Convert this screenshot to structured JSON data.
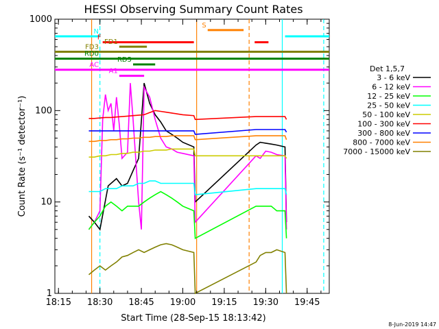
{
  "chart_data": {
    "type": "line",
    "title": "HESSI Observing Summary Count Rates",
    "xlabel": "Start Time (28-Sep-15 18:13:42)",
    "ylabel": "Count Rate (s⁻¹ detector⁻¹)",
    "yscale": "log",
    "ylim": [
      1,
      1000
    ],
    "xlim": [
      "18:13:42",
      "19:53:00"
    ],
    "x_ticks": [
      "18:15",
      "18:30",
      "18:45",
      "19:00",
      "19:15",
      "19:30",
      "19:45"
    ],
    "y_ticks": [
      "1",
      "10",
      "100",
      "1000"
    ],
    "legend_title": "Det 1,5,7",
    "legend_position": "right",
    "series": [
      {
        "name": "3 - 6 keV",
        "color": "#000000",
        "points": [
          [
            "18:26",
            7
          ],
          [
            "18:28",
            6
          ],
          [
            "18:30",
            5
          ],
          [
            "18:33",
            15
          ],
          [
            "18:36",
            18
          ],
          [
            "18:38",
            15
          ],
          [
            "18:40",
            16
          ],
          [
            "18:42",
            22
          ],
          [
            "18:44",
            30
          ],
          [
            "18:46",
            200
          ],
          [
            "18:48",
            120
          ],
          [
            "18:50",
            90
          ],
          [
            "18:52",
            75
          ],
          [
            "18:54",
            60
          ],
          [
            "18:56",
            55
          ],
          [
            "18:58",
            50
          ],
          [
            "19:00",
            45
          ],
          [
            "19:04",
            40
          ],
          [
            "19:04.5",
            10
          ],
          [
            "19:26.5",
            42
          ],
          [
            "19:28",
            45
          ],
          [
            "19:30",
            44
          ],
          [
            "19:32",
            43
          ],
          [
            "19:34",
            42
          ],
          [
            "19:37",
            40
          ],
          [
            "19:37.5",
            6
          ]
        ]
      },
      {
        "name": "6 - 12 keV",
        "color": "#ff00ff",
        "points": [
          [
            "18:26",
            5
          ],
          [
            "18:28",
            6
          ],
          [
            "18:30",
            8
          ],
          [
            "18:31",
            80
          ],
          [
            "18:32",
            150
          ],
          [
            "18:33",
            100
          ],
          [
            "18:34",
            120
          ],
          [
            "18:35",
            60
          ],
          [
            "18:36",
            140
          ],
          [
            "18:37",
            70
          ],
          [
            "18:38",
            30
          ],
          [
            "18:40",
            35
          ],
          [
            "18:41",
            200
          ],
          [
            "18:42",
            80
          ],
          [
            "18:44",
            10
          ],
          [
            "18:45",
            5
          ],
          [
            "18:46",
            180
          ],
          [
            "18:48",
            140
          ],
          [
            "18:50",
            80
          ],
          [
            "18:52",
            50
          ],
          [
            "18:54",
            40
          ],
          [
            "18:56",
            38
          ],
          [
            "18:58",
            35
          ],
          [
            "19:00",
            34
          ],
          [
            "19:04",
            32
          ],
          [
            "19:04.5",
            6
          ],
          [
            "19:26.5",
            32
          ],
          [
            "19:28",
            30
          ],
          [
            "19:30",
            36
          ],
          [
            "19:32",
            35
          ],
          [
            "19:34",
            33
          ],
          [
            "19:37",
            32
          ],
          [
            "19:37.5",
            5
          ]
        ]
      },
      {
        "name": "12 - 25 keV",
        "color": "#00ff00",
        "points": [
          [
            "18:26",
            5
          ],
          [
            "18:28",
            6
          ],
          [
            "18:30",
            7
          ],
          [
            "18:32",
            9
          ],
          [
            "18:34",
            10
          ],
          [
            "18:36",
            9
          ],
          [
            "18:38",
            8
          ],
          [
            "18:40",
            9
          ],
          [
            "18:42",
            9
          ],
          [
            "18:44",
            9
          ],
          [
            "18:46",
            10
          ],
          [
            "18:48",
            11
          ],
          [
            "18:50",
            12
          ],
          [
            "18:52",
            13
          ],
          [
            "18:54",
            12
          ],
          [
            "18:56",
            11
          ],
          [
            "18:58",
            10
          ],
          [
            "19:00",
            9
          ],
          [
            "19:04",
            8
          ],
          [
            "19:04.5",
            4
          ],
          [
            "19:26.5",
            9
          ],
          [
            "19:28",
            9
          ],
          [
            "19:30",
            9
          ],
          [
            "19:32",
            9
          ],
          [
            "19:34",
            8
          ],
          [
            "19:37",
            8
          ],
          [
            "19:37.5",
            4
          ]
        ]
      },
      {
        "name": "25 - 50 keV",
        "color": "#00ffff",
        "points": [
          [
            "18:26",
            13
          ],
          [
            "18:28",
            13
          ],
          [
            "18:30",
            13
          ],
          [
            "18:32",
            14
          ],
          [
            "18:34",
            14
          ],
          [
            "18:36",
            14
          ],
          [
            "18:38",
            15
          ],
          [
            "18:40",
            15
          ],
          [
            "18:42",
            15
          ],
          [
            "18:44",
            16
          ],
          [
            "18:46",
            16
          ],
          [
            "18:48",
            17
          ],
          [
            "18:50",
            17
          ],
          [
            "18:52",
            16
          ],
          [
            "18:54",
            16
          ],
          [
            "18:56",
            16
          ],
          [
            "18:58",
            16
          ],
          [
            "19:00",
            16
          ],
          [
            "19:04",
            16
          ],
          [
            "19:04.5",
            12
          ],
          [
            "19:26.5",
            14
          ],
          [
            "19:28",
            14
          ],
          [
            "19:30",
            14
          ],
          [
            "19:32",
            14
          ],
          [
            "19:34",
            14
          ],
          [
            "19:37",
            14
          ],
          [
            "19:37.5",
            12
          ]
        ]
      },
      {
        "name": "50 - 100 keV",
        "color": "#cccc00",
        "points": [
          [
            "18:26",
            31
          ],
          [
            "18:28",
            31
          ],
          [
            "18:30",
            32
          ],
          [
            "18:32",
            32
          ],
          [
            "18:34",
            33
          ],
          [
            "18:36",
            33
          ],
          [
            "18:38",
            34
          ],
          [
            "18:40",
            34
          ],
          [
            "18:42",
            35
          ],
          [
            "18:44",
            35
          ],
          [
            "18:46",
            36
          ],
          [
            "18:48",
            36
          ],
          [
            "18:50",
            37
          ],
          [
            "18:52",
            37
          ],
          [
            "18:54",
            37
          ],
          [
            "18:56",
            38
          ],
          [
            "18:58",
            38
          ],
          [
            "19:00",
            38
          ],
          [
            "19:04",
            38
          ],
          [
            "19:04.5",
            32
          ],
          [
            "19:26.5",
            32
          ],
          [
            "19:28",
            32
          ],
          [
            "19:30",
            32
          ],
          [
            "19:32",
            32
          ],
          [
            "19:34",
            32
          ],
          [
            "19:37",
            32
          ],
          [
            "19:37.5",
            30
          ]
        ]
      },
      {
        "name": "100 - 300 keV",
        "color": "#ff0000",
        "points": [
          [
            "18:26",
            82
          ],
          [
            "18:28",
            82
          ],
          [
            "18:30",
            83
          ],
          [
            "18:32",
            84
          ],
          [
            "18:34",
            84
          ],
          [
            "18:36",
            85
          ],
          [
            "18:38",
            86
          ],
          [
            "18:40",
            87
          ],
          [
            "18:42",
            88
          ],
          [
            "18:44",
            89
          ],
          [
            "18:46",
            90
          ],
          [
            "18:48",
            95
          ],
          [
            "18:50",
            100
          ],
          [
            "18:52",
            98
          ],
          [
            "18:54",
            96
          ],
          [
            "18:56",
            94
          ],
          [
            "18:58",
            92
          ],
          [
            "19:00",
            90
          ],
          [
            "19:04",
            88
          ],
          [
            "19:04.5",
            80
          ],
          [
            "19:26.5",
            86
          ],
          [
            "19:28",
            86
          ],
          [
            "19:30",
            86
          ],
          [
            "19:32",
            86
          ],
          [
            "19:34",
            86
          ],
          [
            "19:37",
            86
          ],
          [
            "19:37.5",
            80
          ]
        ]
      },
      {
        "name": "300 - 800 keV",
        "color": "#0000ff",
        "points": [
          [
            "18:26",
            60
          ],
          [
            "18:28",
            60
          ],
          [
            "18:30",
            60
          ],
          [
            "18:32",
            60
          ],
          [
            "18:34",
            60
          ],
          [
            "18:36",
            60
          ],
          [
            "18:38",
            60
          ],
          [
            "18:40",
            60
          ],
          [
            "18:42",
            60
          ],
          [
            "18:44",
            60
          ],
          [
            "18:46",
            60
          ],
          [
            "18:48",
            60
          ],
          [
            "18:50",
            60
          ],
          [
            "18:52",
            60
          ],
          [
            "18:54",
            60
          ],
          [
            "18:56",
            60
          ],
          [
            "18:58",
            60
          ],
          [
            "19:00",
            60
          ],
          [
            "19:04",
            60
          ],
          [
            "19:04.5",
            55
          ],
          [
            "19:26.5",
            62
          ],
          [
            "19:28",
            62
          ],
          [
            "19:30",
            62
          ],
          [
            "19:32",
            62
          ],
          [
            "19:34",
            62
          ],
          [
            "19:37",
            62
          ],
          [
            "19:37.5",
            58
          ]
        ]
      },
      {
        "name": "800 - 7000 keV",
        "color": "#ff8000",
        "points": [
          [
            "18:26",
            46
          ],
          [
            "18:28",
            46
          ],
          [
            "18:30",
            47
          ],
          [
            "18:32",
            47
          ],
          [
            "18:34",
            48
          ],
          [
            "18:36",
            48
          ],
          [
            "18:38",
            49
          ],
          [
            "18:40",
            49
          ],
          [
            "18:42",
            50
          ],
          [
            "18:44",
            50
          ],
          [
            "18:46",
            51
          ],
          [
            "18:48",
            51
          ],
          [
            "18:50",
            52
          ],
          [
            "18:52",
            52
          ],
          [
            "18:54",
            52
          ],
          [
            "18:56",
            53
          ],
          [
            "18:58",
            53
          ],
          [
            "19:00",
            53
          ],
          [
            "19:04",
            53
          ],
          [
            "19:04.5",
            48
          ],
          [
            "19:26.5",
            53
          ],
          [
            "19:28",
            53
          ],
          [
            "19:30",
            53
          ],
          [
            "19:32",
            53
          ],
          [
            "19:34",
            53
          ],
          [
            "19:37",
            53
          ],
          [
            "19:37.5",
            48
          ]
        ]
      },
      {
        "name": "7000 - 15000 keV",
        "color": "#808000",
        "points": [
          [
            "18:26",
            1.6
          ],
          [
            "18:28",
            1.8
          ],
          [
            "18:30",
            2
          ],
          [
            "18:32",
            1.8
          ],
          [
            "18:34",
            2
          ],
          [
            "18:36",
            2.2
          ],
          [
            "18:38",
            2.5
          ],
          [
            "18:40",
            2.6
          ],
          [
            "18:42",
            2.8
          ],
          [
            "18:44",
            3
          ],
          [
            "18:46",
            2.8
          ],
          [
            "18:48",
            3
          ],
          [
            "18:50",
            3.2
          ],
          [
            "18:52",
            3.4
          ],
          [
            "18:54",
            3.5
          ],
          [
            "18:56",
            3.4
          ],
          [
            "18:58",
            3.2
          ],
          [
            "19:00",
            3
          ],
          [
            "19:04",
            2.8
          ],
          [
            "19:04.5",
            1
          ],
          [
            "19:26.5",
            2.2
          ],
          [
            "19:28",
            2.6
          ],
          [
            "19:30",
            2.8
          ],
          [
            "19:32",
            2.8
          ],
          [
            "19:34",
            3
          ],
          [
            "19:37",
            2.8
          ],
          [
            "19:37.5",
            1
          ]
        ]
      }
    ],
    "flag_bars": [
      {
        "label": "N",
        "color": "#00ffff",
        "level": 650,
        "segments": [
          [
            "18:13:42",
            "18:30"
          ],
          [
            "19:37",
            "19:53:00"
          ]
        ]
      },
      {
        "label": "F",
        "color": "#ff0000",
        "level": 560,
        "segments": [
          [
            "18:31",
            "19:04"
          ],
          [
            "19:26",
            "19:31"
          ]
        ]
      },
      {
        "label": "S",
        "color": "#ff8000",
        "level": 760,
        "segments": [
          [
            "19:09",
            "19:22"
          ]
        ]
      },
      {
        "label": "FD1",
        "color": "#808000",
        "level": 500,
        "segments": [
          [
            "18:37",
            "18:47"
          ]
        ]
      },
      {
        "label": "FD3",
        "color": "#808000",
        "level": 440,
        "segments": [
          [
            "18:13:42",
            "19:53:00"
          ]
        ]
      },
      {
        "label": "RD0",
        "color": "#008000",
        "level": 370,
        "segments": [
          [
            "18:13:42",
            "19:53:00"
          ]
        ]
      },
      {
        "label": "RD5",
        "color": "#008000",
        "level": 320,
        "segments": [
          [
            "18:42",
            "18:50"
          ]
        ]
      },
      {
        "label": "AC",
        "color": "#ff00ff",
        "level": 280,
        "segments": [
          [
            "18:13:42",
            "19:53:00"
          ]
        ]
      },
      {
        "label": "A1",
        "color": "#ff00ff",
        "level": 240,
        "segments": [
          [
            "18:37",
            "18:46"
          ]
        ]
      }
    ],
    "vertical_lines": [
      {
        "time": "18:27",
        "color": "#ff8000",
        "style": "solid"
      },
      {
        "time": "18:30",
        "color": "#00ffff",
        "style": "dashed"
      },
      {
        "time": "19:05",
        "color": "#ff8000",
        "style": "solid"
      },
      {
        "time": "19:24",
        "color": "#ff8000",
        "style": "dashed"
      },
      {
        "time": "19:36",
        "color": "#00ffff",
        "style": "solid"
      },
      {
        "time": "19:51",
        "color": "#00ffff",
        "style": "dashed"
      }
    ]
  },
  "footer": {
    "timestamp": "8-Jun-2019 14:47"
  }
}
